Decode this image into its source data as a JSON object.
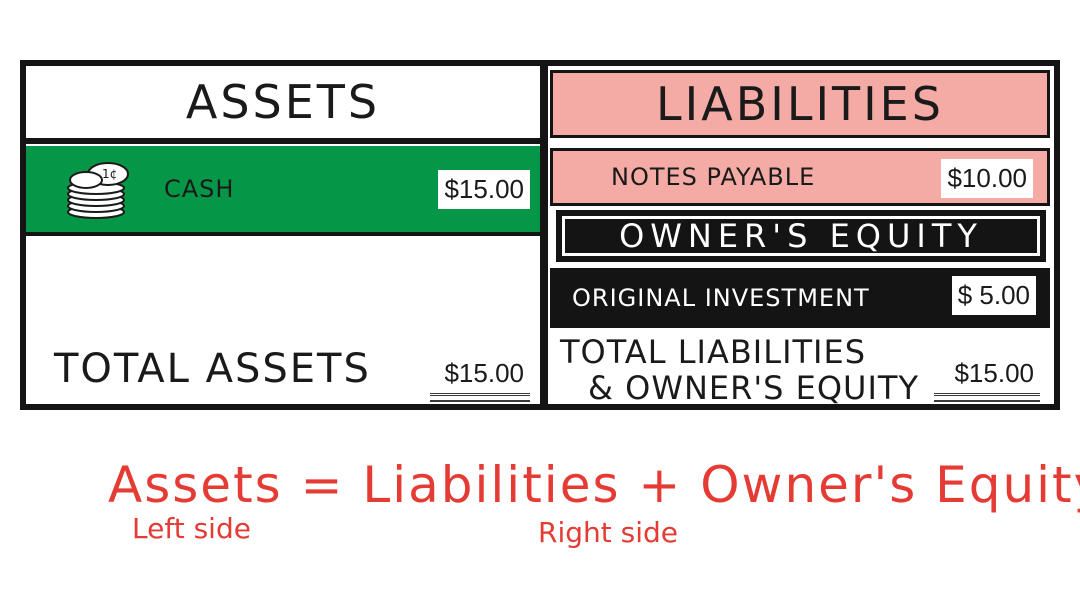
{
  "colors": {
    "green": "#069647",
    "pink": "#f4aba5",
    "black": "#141414",
    "equation_red": "#e53b35"
  },
  "assets": {
    "header": "ASSETS",
    "cash_label": "CASH",
    "cash_amount": "$15.00",
    "cash_icon": "coin-stack-icon",
    "total_label": "TOTAL ASSETS",
    "total_amount": "$15.00"
  },
  "liabilities": {
    "header": "LIABILITIES",
    "notes_label": "NOTES PAYABLE",
    "notes_amount": "$10.00"
  },
  "owners_equity": {
    "header": "OWNER'S EQUITY",
    "original_label": "ORIGINAL INVESTMENT",
    "original_amount": "$ 5.00"
  },
  "totals": {
    "liab_equity_line1": "TOTAL LIABILITIES",
    "liab_equity_line2": "& OWNER'S EQUITY",
    "liab_equity_amount": "$15.00"
  },
  "equation": {
    "text": "Assets = Liabilities + Owner's Equity",
    "left_side": "Left side",
    "right_side": "Right side"
  }
}
